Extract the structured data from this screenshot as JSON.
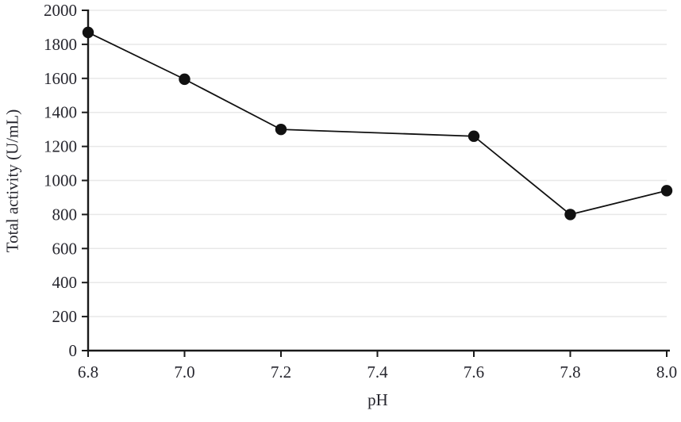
{
  "chart_data": {
    "type": "line",
    "title": "",
    "xlabel": "pH",
    "ylabel": "Total activity (U/mL)",
    "x": [
      6.8,
      7.0,
      7.2,
      7.6,
      7.8,
      8.0
    ],
    "y": [
      1870,
      1595,
      1300,
      1260,
      800,
      940
    ],
    "xlim": [
      6.8,
      8.0
    ],
    "ylim": [
      0,
      2000
    ],
    "xticks": [
      "6.8",
      "7.0",
      "7.2",
      "7.4",
      "7.6",
      "7.8",
      "8.0"
    ],
    "xtick_values": [
      6.8,
      7.0,
      7.2,
      7.4,
      7.6,
      7.8,
      8.0
    ],
    "yticks": [
      "0",
      "200",
      "400",
      "600",
      "800",
      "1000",
      "1200",
      "1400",
      "1600",
      "1800",
      "2000"
    ],
    "ytick_values": [
      0,
      200,
      400,
      600,
      800,
      1000,
      1200,
      1400,
      1600,
      1800,
      2000
    ],
    "grid": "horizontal",
    "legend": "none",
    "marker": "filled-circle",
    "colors": {
      "line": "#111111",
      "marker": "#111111",
      "axis": "#1a1a1a",
      "grid": "#e8e8e8",
      "text": "#26262e"
    }
  }
}
